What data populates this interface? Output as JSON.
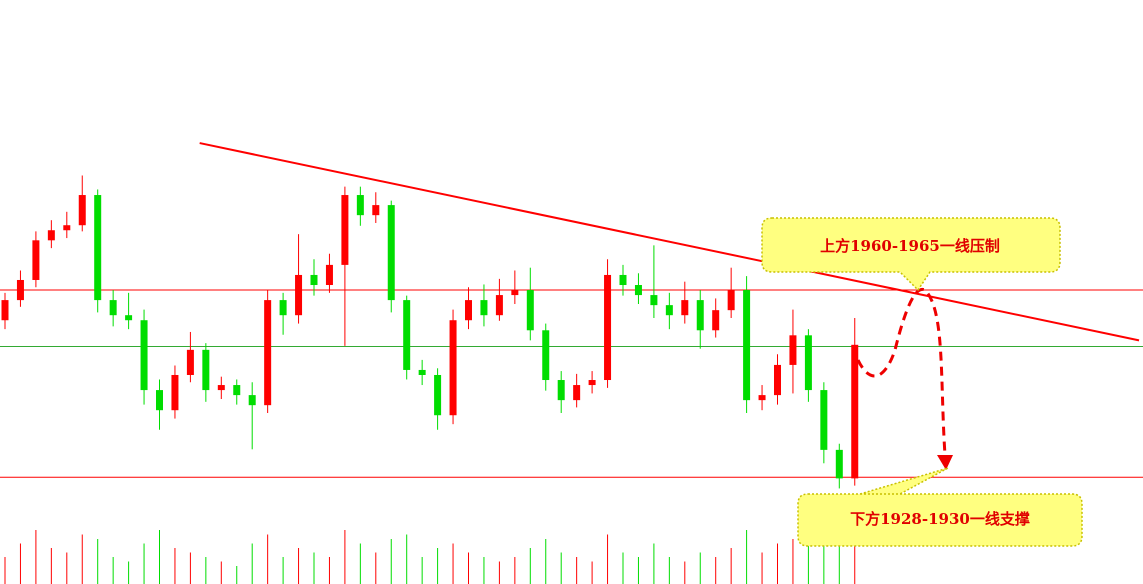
{
  "chart_data": {
    "type": "candlestick",
    "ylim": [
      1909.9,
      2014.4
    ],
    "up_color": "#ff0000",
    "down_color": "#00dd00",
    "candles": [
      [
        1957.1,
        1962.0,
        1955.5,
        1960.7
      ],
      [
        1960.7,
        1966.0,
        1959.5,
        1964.3
      ],
      [
        1964.3,
        1973.0,
        1963.0,
        1971.4
      ],
      [
        1971.4,
        1975.0,
        1970.0,
        1973.2
      ],
      [
        1973.2,
        1976.5,
        1971.8,
        1974.1
      ],
      [
        1974.1,
        1983.0,
        1973.0,
        1979.5
      ],
      [
        1979.5,
        1980.5,
        1958.5,
        1960.7
      ],
      [
        1960.7,
        1962.5,
        1956.0,
        1958.0
      ],
      [
        1958.0,
        1962.0,
        1955.5,
        1957.1
      ],
      [
        1957.1,
        1959.0,
        1942.0,
        1944.6
      ],
      [
        1944.6,
        1946.5,
        1937.5,
        1941.0
      ],
      [
        1941.0,
        1949.0,
        1939.5,
        1947.3
      ],
      [
        1947.3,
        1955.0,
        1946.0,
        1951.8
      ],
      [
        1951.8,
        1953.0,
        1942.5,
        1944.6
      ],
      [
        1944.6,
        1947.0,
        1943.0,
        1945.5
      ],
      [
        1945.5,
        1946.5,
        1942.0,
        1943.7
      ],
      [
        1943.7,
        1946.0,
        1934.0,
        1941.9
      ],
      [
        1941.9,
        1962.5,
        1940.5,
        1960.7
      ],
      [
        1960.7,
        1962.0,
        1954.5,
        1958.0
      ],
      [
        1958.0,
        1972.5,
        1956.5,
        1965.2
      ],
      [
        1965.2,
        1968.0,
        1961.5,
        1963.4
      ],
      [
        1963.4,
        1969.0,
        1962.0,
        1967.0
      ],
      [
        1967.0,
        1981.0,
        1952.5,
        1979.5
      ],
      [
        1979.5,
        1981.0,
        1974.0,
        1975.9
      ],
      [
        1975.9,
        1980.0,
        1974.5,
        1977.7
      ],
      [
        1977.7,
        1978.5,
        1958.5,
        1960.7
      ],
      [
        1960.7,
        1961.5,
        1946.5,
        1948.2
      ],
      [
        1948.2,
        1950.0,
        1945.5,
        1947.3
      ],
      [
        1947.3,
        1948.5,
        1937.5,
        1940.1
      ],
      [
        1940.1,
        1959.0,
        1938.5,
        1957.1
      ],
      [
        1957.1,
        1963.0,
        1955.5,
        1960.7
      ],
      [
        1960.7,
        1963.5,
        1956.0,
        1958.0
      ],
      [
        1958.0,
        1964.5,
        1957.0,
        1961.6
      ],
      [
        1961.6,
        1966.0,
        1960.0,
        1962.5
      ],
      [
        1962.5,
        1966.5,
        1953.5,
        1955.3
      ],
      [
        1955.3,
        1956.5,
        1944.5,
        1946.4
      ],
      [
        1946.4,
        1948.0,
        1940.5,
        1942.8
      ],
      [
        1942.8,
        1947.5,
        1941.5,
        1945.5
      ],
      [
        1945.5,
        1948.0,
        1944.0,
        1946.4
      ],
      [
        1946.4,
        1968.0,
        1945.0,
        1965.2
      ],
      [
        1965.2,
        1967.0,
        1961.5,
        1963.4
      ],
      [
        1963.4,
        1965.5,
        1960.0,
        1961.6
      ],
      [
        1961.6,
        1970.5,
        1957.5,
        1959.8
      ],
      [
        1959.8,
        1962.0,
        1955.5,
        1958.0
      ],
      [
        1958.0,
        1964.0,
        1956.5,
        1960.7
      ],
      [
        1960.7,
        1962.5,
        1952.0,
        1955.3
      ],
      [
        1955.3,
        1961.0,
        1954.0,
        1958.9
      ],
      [
        1958.9,
        1966.5,
        1957.5,
        1962.5
      ],
      [
        1962.5,
        1965.0,
        1940.5,
        1942.8
      ],
      [
        1942.8,
        1945.5,
        1941.0,
        1943.7
      ],
      [
        1943.7,
        1951.0,
        1942.0,
        1949.1
      ],
      [
        1949.1,
        1959.0,
        1944.0,
        1954.4
      ],
      [
        1954.4,
        1955.5,
        1942.5,
        1944.6
      ],
      [
        1944.6,
        1946.0,
        1931.5,
        1933.9
      ],
      [
        1933.9,
        1935.0,
        1927.0,
        1928.8
      ],
      [
        1928.8,
        1957.5,
        1927.5,
        1952.7
      ]
    ],
    "volume": [
      30,
      45,
      60,
      40,
      35,
      55,
      50,
      30,
      25,
      45,
      60,
      40,
      35,
      30,
      25,
      20,
      45,
      55,
      30,
      40,
      35,
      30,
      60,
      45,
      35,
      50,
      55,
      30,
      40,
      45,
      35,
      30,
      25,
      30,
      40,
      50,
      35,
      30,
      25,
      55,
      35,
      30,
      45,
      30,
      25,
      35,
      30,
      40,
      60,
      35,
      45,
      50,
      55,
      65,
      60,
      70
    ],
    "y2lim": [
      0,
      100
    ],
    "hlines": [
      {
        "value": 1962.5,
        "color": "#ff0000"
      },
      {
        "value": 1952.4,
        "color": "#33aa33"
      },
      {
        "value": 1929.0,
        "color": "#ff0000"
      }
    ],
    "trendline": {
      "x": [
        12.6,
        73.4
      ],
      "y": [
        1988.8,
        1953.5
      ],
      "color": "#ff0000"
    },
    "annotations": [
      "上方1960-1965一线压制",
      "下方1928-1930一线支撑"
    ]
  }
}
